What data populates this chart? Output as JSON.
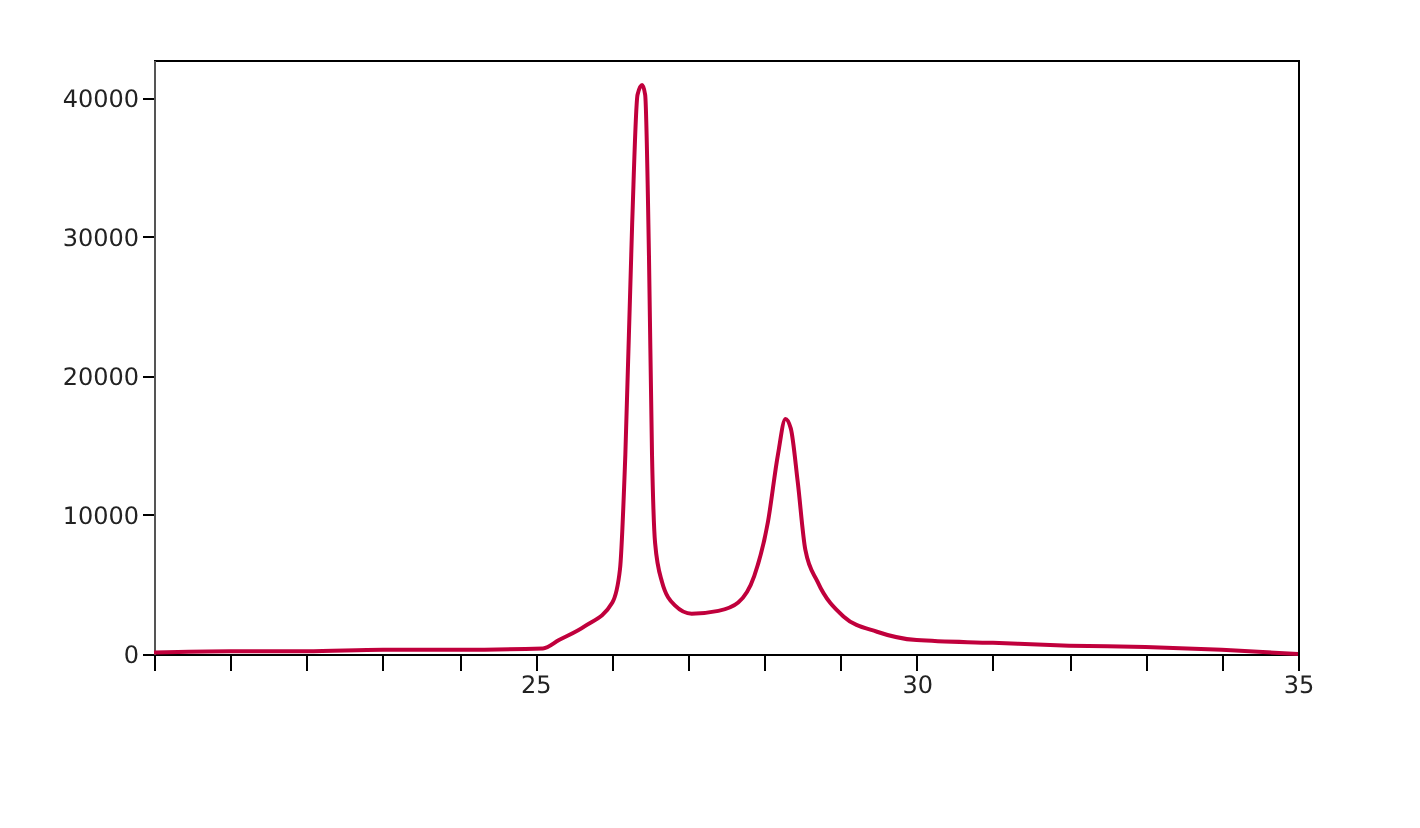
{
  "chart_data": {
    "type": "line",
    "xlim": [
      20,
      35
    ],
    "ylim": [
      0,
      42700
    ],
    "xticks": [
      {
        "value": 20,
        "label": null
      },
      {
        "value": 21,
        "label": null
      },
      {
        "value": 22,
        "label": null
      },
      {
        "value": 23,
        "label": null
      },
      {
        "value": 24,
        "label": null
      },
      25,
      {
        "value": 26,
        "label": null
      },
      {
        "value": 27,
        "label": null
      },
      {
        "value": 28,
        "label": null
      },
      {
        "value": 29,
        "label": null
      },
      30,
      {
        "value": 31,
        "label": null
      },
      {
        "value": 32,
        "label": null
      },
      {
        "value": 33,
        "label": null
      },
      {
        "value": 34,
        "label": null
      },
      35
    ],
    "yticks": [
      0,
      10000,
      20000,
      30000,
      40000
    ],
    "grid": false,
    "marker": "none",
    "line_style": "solid",
    "series": [
      {
        "color": "#c0003c",
        "x": [
          20,
          21,
          22,
          23,
          24,
          25.1,
          25.31,
          25.65,
          26.01,
          26.11,
          26.18,
          26.27,
          26.34,
          26.4,
          26.44,
          26.49,
          26.53,
          26.57,
          26.66,
          26.83,
          27.05,
          27.4,
          27.66,
          27.87,
          28.05,
          28.18,
          28.28,
          28.35,
          28.44,
          28.54,
          28.7,
          29.04,
          29.48,
          30,
          31,
          32,
          33,
          34,
          35
        ],
        "values": [
          100,
          200,
          200,
          300,
          300,
          400,
          1000,
          2000,
          3700,
          6100,
          14300,
          31000,
          40200,
          40900,
          40200,
          28600,
          14300,
          8000,
          5200,
          3500,
          2900,
          3100,
          3700,
          5600,
          9500,
          14300,
          16900,
          16200,
          12400,
          7500,
          5200,
          2700,
          1600,
          1000,
          800,
          600,
          500,
          300,
          0
        ]
      }
    ]
  }
}
